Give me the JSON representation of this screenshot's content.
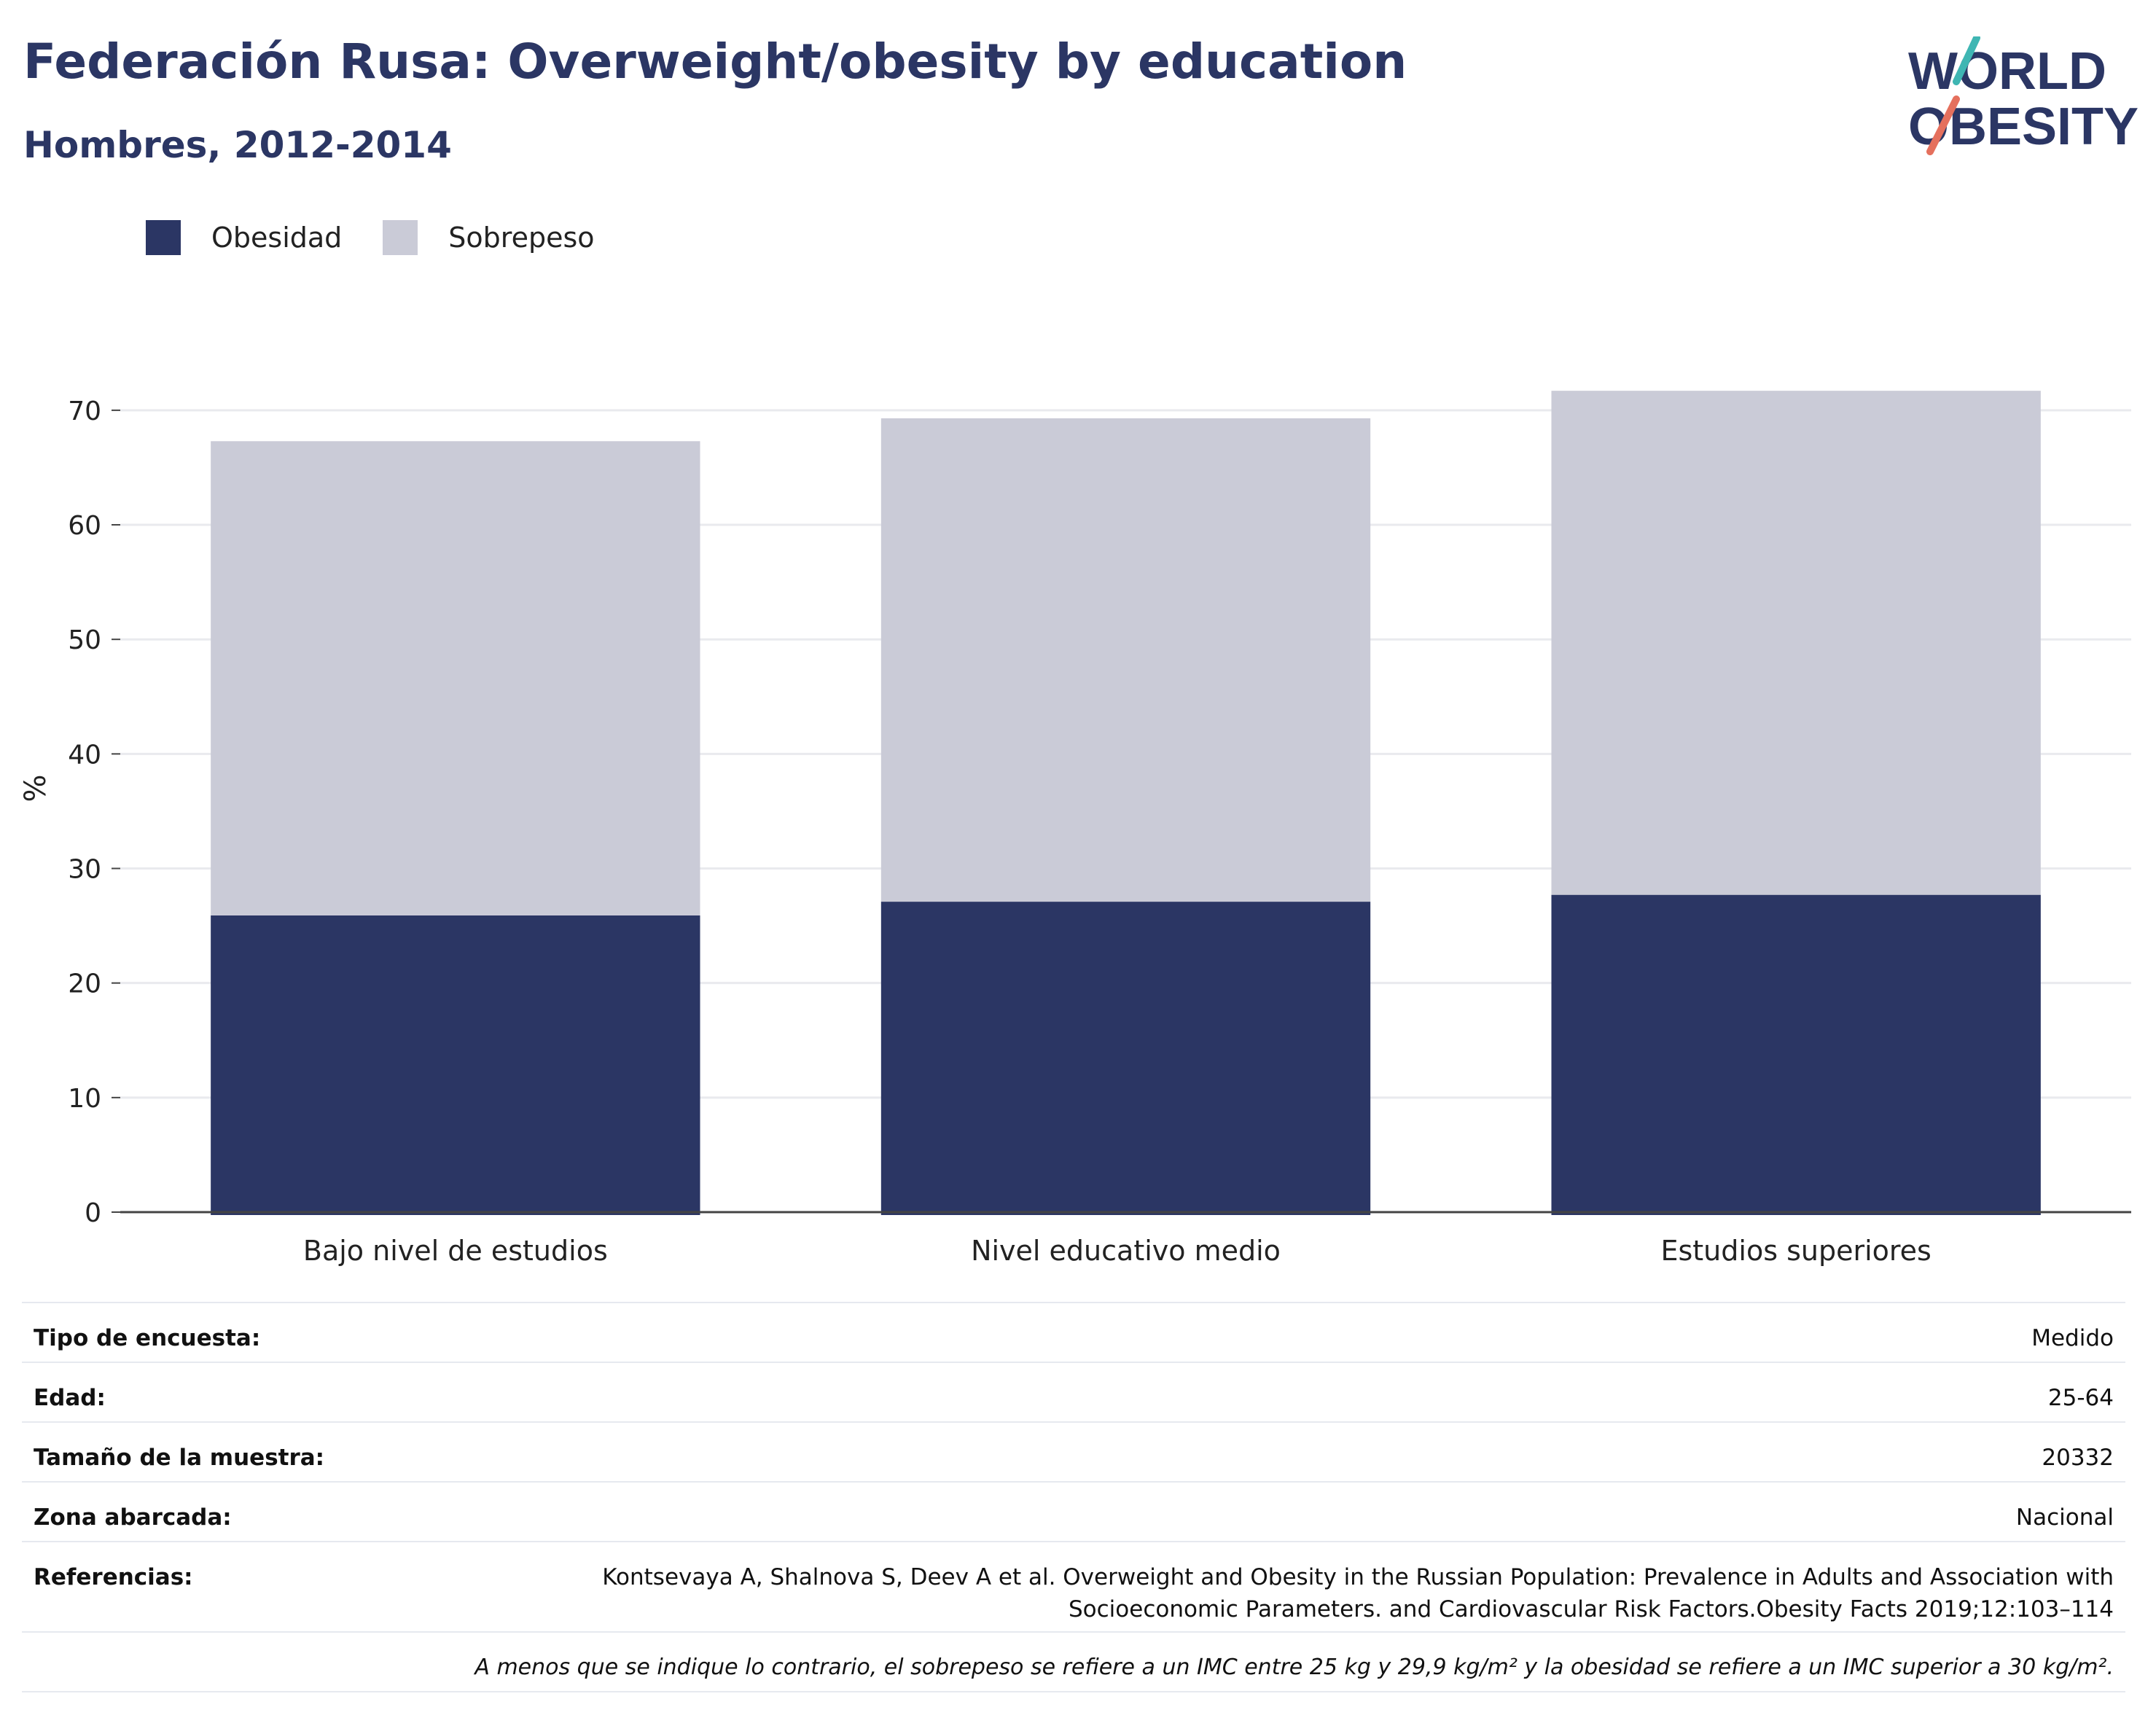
{
  "header": {
    "title": "Federación Rusa: Overweight/obesity by education",
    "subtitle": "Hombres, 2012-2014"
  },
  "logo": {
    "line1": "WORLD",
    "line2": "OBESITY"
  },
  "colors": {
    "obesity": "#2b3664",
    "overweight": "#cacbd7",
    "title": "#2b3664",
    "logo_teal": "#3fb6b3",
    "logo_coral": "#e5705d"
  },
  "chart_data": {
    "type": "bar",
    "stacked": true,
    "categories": [
      "Bajo nivel de estudios",
      "Nivel educativo medio",
      "Estudios superiores"
    ],
    "series": [
      {
        "name": "Obesidad",
        "values": [
          25.9,
          27.1,
          27.7
        ],
        "color": "#2b3664"
      },
      {
        "name": "Sobrepeso",
        "values": [
          41.4,
          42.2,
          44.0
        ],
        "color": "#cacbd7"
      }
    ],
    "ylabel": "%",
    "ylim": [
      0,
      74
    ],
    "yticks": [
      "0",
      "10",
      "20",
      "30",
      "40",
      "50",
      "60",
      "70"
    ],
    "grid": true,
    "legend_position": "top-left"
  },
  "meta": {
    "rows": [
      {
        "label": "Tipo de encuesta:",
        "value": "Medido"
      },
      {
        "label": "Edad:",
        "value": "25-64"
      },
      {
        "label": "Tamaño de la muestra:",
        "value": "20332"
      },
      {
        "label": "Zona abarcada:",
        "value": "Nacional"
      }
    ],
    "references_label": "Referencias:",
    "references_line1": "Kontsevaya A, Shalnova S, Deev A et al. Overweight and Obesity in the Russian Population: Prevalence in Adults and Association with",
    "references_line2": "Socioeconomic Parameters. and Cardiovascular Risk Factors.Obesity Facts 2019;12:103–114",
    "note": "A menos que se indique lo contrario, el sobrepeso se refiere a un IMC entre 25 kg y 29,9 kg/m² y la obesidad se refiere a un IMC superior a 30 kg/m²."
  }
}
